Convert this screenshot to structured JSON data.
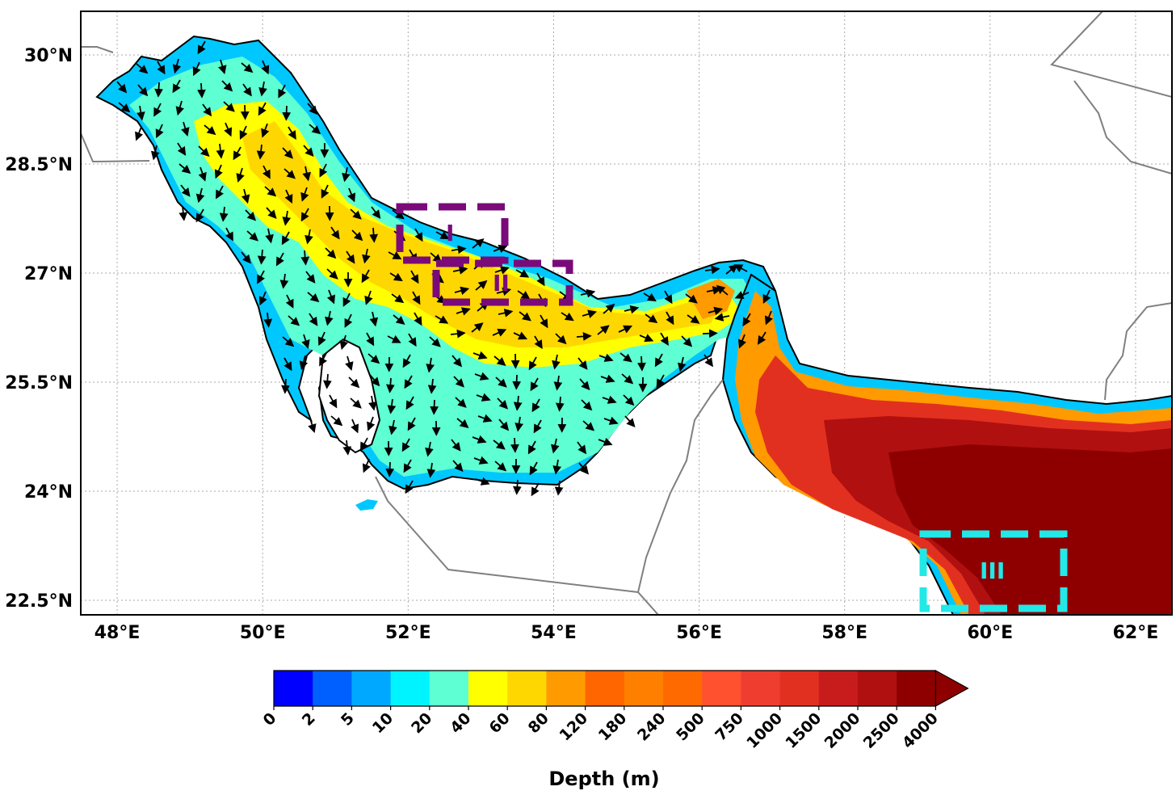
{
  "map": {
    "lon_range": [
      47.5,
      62.5
    ],
    "lat_range": [
      22.3,
      30.6
    ],
    "lon_ticks": [
      {
        "value": 48,
        "label": "48°E"
      },
      {
        "value": 50,
        "label": "50°E"
      },
      {
        "value": 52,
        "label": "52°E"
      },
      {
        "value": 54,
        "label": "54°E"
      },
      {
        "value": 56,
        "label": "56°E"
      },
      {
        "value": 58,
        "label": "58°E"
      },
      {
        "value": 60,
        "label": "60°E"
      },
      {
        "value": 62,
        "label": "62°E"
      }
    ],
    "lat_ticks": [
      {
        "value": 30.0,
        "label": "30°N"
      },
      {
        "value": 28.5,
        "label": "28.5°N"
      },
      {
        "value": 27.0,
        "label": "27°N"
      },
      {
        "value": 25.5,
        "label": "25.5°N"
      },
      {
        "value": 24.0,
        "label": "24°N"
      },
      {
        "value": 22.5,
        "label": "22.5°N"
      }
    ],
    "gridlines": true,
    "land_color": "#ffffff",
    "border_color": "#808080",
    "coast_color": "#000000"
  },
  "regions": [
    {
      "label": "I",
      "color": "#7a0a7a"
    },
    {
      "label": "II",
      "color": "#7a0a7a"
    },
    {
      "label": "III",
      "color": "#22e8e8"
    }
  ],
  "colorbar": {
    "title": "Depth (m)",
    "labels": [
      "0",
      "2",
      "5",
      "10",
      "20",
      "40",
      "60",
      "80",
      "120",
      "180",
      "240",
      "500",
      "750",
      "1000",
      "1500",
      "2000",
      "2500",
      "4000"
    ],
    "colors": [
      "#0000ff",
      "#0060ff",
      "#00a8ff",
      "#00f4ff",
      "#5effd2",
      "#ffff00",
      "#ffd700",
      "#ff9a00",
      "#ff6600",
      "#ff8000",
      "#ff6a00",
      "#ff5030",
      "#ef3e30",
      "#e23020",
      "#c81c1c",
      "#b01010",
      "#8e0000"
    ],
    "extend": "max"
  }
}
